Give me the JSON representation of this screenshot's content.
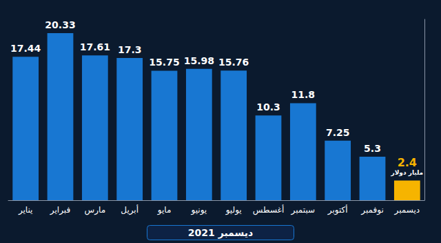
{
  "chart_data": {
    "type": "bar",
    "title": "ديسمبر 2021",
    "categories": [
      "يناير",
      "فبراير",
      "مارس",
      "أبريل",
      "مايو",
      "يونيو",
      "يوليو",
      "أغسطس",
      "سبتمبر",
      "أكتوبر",
      "نوفمبر",
      "ديسمبر"
    ],
    "values": [
      17.44,
      20.33,
      17.61,
      17.3,
      15.75,
      15.98,
      15.76,
      10.3,
      11.8,
      7.25,
      5.3,
      2.4
    ],
    "colors": [
      "#1877d2",
      "#1877d2",
      "#1877d2",
      "#1877d2",
      "#1877d2",
      "#1877d2",
      "#1877d2",
      "#1877d2",
      "#1877d2",
      "#1877d2",
      "#1877d2",
      "#f6b400"
    ],
    "annotations": [
      {
        "text": "مليار دولار",
        "category": "ديسمبر"
      }
    ],
    "ylim": [
      0,
      22
    ],
    "grid": false,
    "data_labels": true,
    "tick_labels": "x"
  }
}
